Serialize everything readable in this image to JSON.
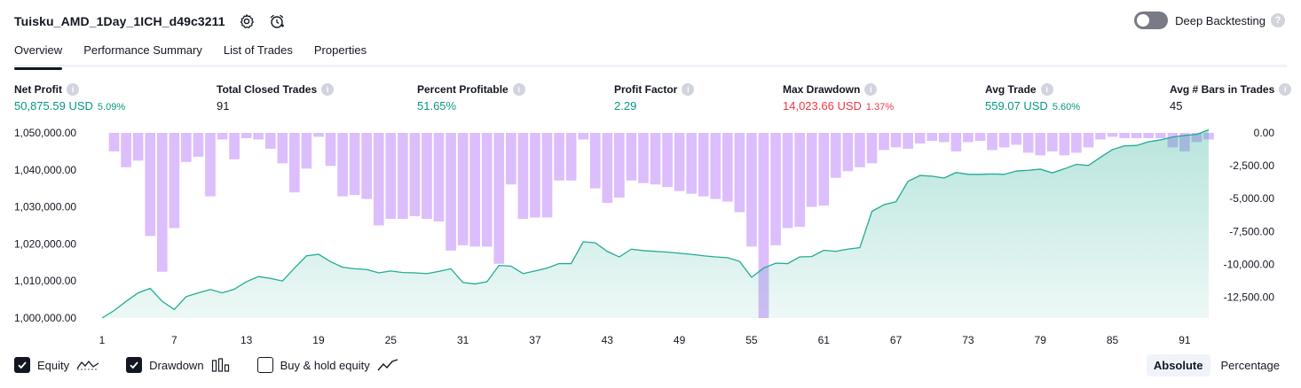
{
  "header": {
    "strategy_name": "Tuisku_AMD_1Day_1ICH_d49c3211",
    "settings_icon": "gear-icon",
    "alert_icon": "alarm-clock-add-icon"
  },
  "deep_backtesting": {
    "label": "Deep Backtesting",
    "enabled": false,
    "help": "?"
  },
  "tabs": [
    {
      "label": "Overview",
      "active": true
    },
    {
      "label": "Performance Summary",
      "active": false
    },
    {
      "label": "List of Trades",
      "active": false
    },
    {
      "label": "Properties",
      "active": false
    }
  ],
  "metrics": [
    {
      "label": "Net Profit",
      "value": "50,875.59 USD",
      "pct": "5.09%",
      "color": "green"
    },
    {
      "label": "Total Closed Trades",
      "value": "91",
      "pct": "",
      "color": "dark"
    },
    {
      "label": "Percent Profitable",
      "value": "51.65%",
      "pct": "",
      "color": "green"
    },
    {
      "label": "Profit Factor",
      "value": "2.29",
      "pct": "",
      "color": "green"
    },
    {
      "label": "Max Drawdown",
      "value": "14,023.66 USD",
      "pct": "1.37%",
      "color": "red"
    },
    {
      "label": "Avg Trade",
      "value": "559.07 USD",
      "pct": "5.60%",
      "color": "green"
    },
    {
      "label": "Avg # Bars in Trades",
      "value": "45",
      "pct": "",
      "color": "dark"
    }
  ],
  "chart_data": {
    "type": "area",
    "x_ticks": [
      "1",
      "7",
      "13",
      "19",
      "25",
      "31",
      "37",
      "43",
      "49",
      "55",
      "61",
      "67",
      "73",
      "79",
      "85",
      "91"
    ],
    "y_left_ticks": [
      "1,050,000.00",
      "1,040,000.00",
      "1,030,000.00",
      "1,020,000.00",
      "1,010,000.00",
      "1,000,000.00"
    ],
    "y_right_ticks": [
      "0.00",
      "-2,500.00",
      "-5,000.00",
      "-7,500.00",
      "-10,000.00",
      "-12,500.00"
    ],
    "equity_ylim": [
      1000000,
      1050000
    ],
    "drawdown_ylim": [
      -14000,
      0
    ],
    "series": [
      {
        "name": "Equity",
        "color": "#22ab94",
        "values": [
          1000000,
          1002000,
          1004500,
          1006800,
          1008000,
          1004500,
          1002300,
          1005800,
          1006800,
          1007700,
          1006800,
          1007800,
          1009800,
          1011200,
          1010700,
          1010000,
          1013500,
          1016800,
          1017200,
          1015200,
          1013700,
          1013300,
          1013100,
          1012200,
          1012700,
          1012300,
          1012200,
          1012000,
          1012600,
          1013300,
          1009600,
          1009200,
          1009800,
          1014200,
          1014000,
          1012000,
          1012700,
          1013500,
          1014700,
          1014700,
          1020600,
          1020300,
          1018000,
          1016500,
          1018600,
          1018200,
          1018000,
          1017800,
          1017500,
          1017200,
          1016800,
          1016500,
          1016300,
          1015300,
          1011000,
          1013500,
          1014800,
          1014700,
          1016500,
          1016600,
          1018300,
          1018000,
          1018600,
          1019000,
          1028800,
          1030600,
          1031400,
          1036900,
          1038500,
          1038300,
          1037800,
          1039300,
          1038800,
          1038800,
          1038900,
          1038800,
          1039700,
          1039900,
          1040200,
          1039200,
          1040300,
          1041500,
          1041200,
          1043400,
          1045500,
          1046500,
          1046600,
          1047600,
          1048100,
          1048900,
          1049300,
          1049600,
          1050800
        ]
      },
      {
        "name": "Drawdown",
        "color": "#d6b3fc",
        "values": [
          0,
          -1400,
          -2600,
          -2100,
          -7800,
          -10500,
          -7200,
          -2200,
          -1800,
          -4800,
          -500,
          -2000,
          -400,
          -500,
          -1200,
          -2300,
          -4500,
          -2700,
          -300,
          -2500,
          -4800,
          -4700,
          -5000,
          -7000,
          -6500,
          -6500,
          -6300,
          -6500,
          -6700,
          -8900,
          -8500,
          -8600,
          -8600,
          -9900,
          -3900,
          -6500,
          -6400,
          -6400,
          -3600,
          -3600,
          -500,
          -4200,
          -5300,
          -4900,
          -3600,
          -3800,
          -3900,
          -4100,
          -4400,
          -4600,
          -4800,
          -5000,
          -5200,
          -6000,
          -8600,
          -14000,
          -8500,
          -7200,
          -7100,
          -5600,
          -5500,
          -3400,
          -2900,
          -2600,
          -2300,
          -1300,
          -1100,
          -1200,
          -800,
          -600,
          -700,
          -1400,
          -700,
          -600,
          -1300,
          -1100,
          -900,
          -1500,
          -1700,
          -1400,
          -1700,
          -1500,
          -1100,
          -500,
          -300,
          -400,
          -400,
          -400,
          -400,
          -1100,
          -1400,
          -700,
          -500
        ]
      }
    ]
  },
  "legend": [
    {
      "label": "Equity",
      "checked": true,
      "icon": "equity-line-icon"
    },
    {
      "label": "Drawdown",
      "checked": true,
      "icon": "drawdown-bars-icon"
    },
    {
      "label": "Buy & hold equity",
      "checked": false,
      "icon": "buy-hold-line-icon"
    }
  ],
  "modes": [
    {
      "label": "Absolute",
      "active": true
    },
    {
      "label": "Percentage",
      "active": false
    }
  ]
}
